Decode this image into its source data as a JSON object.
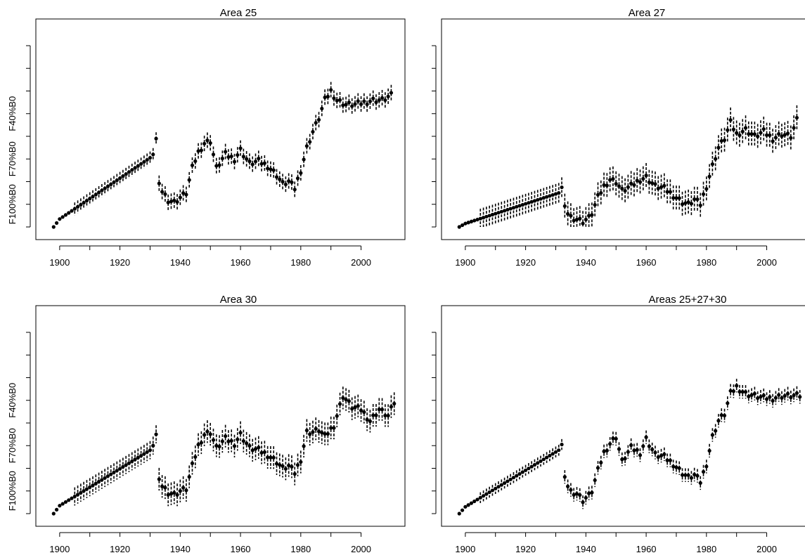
{
  "chart_data": [
    {
      "type": "scatter",
      "title": "Area 25",
      "xlim": [
        1897,
        2012
      ],
      "x_ticks": [
        1900,
        1920,
        1940,
        1960,
        1980,
        2000
      ],
      "y_tick_labels": [
        "F100%B0",
        "F70%B0",
        "F40%B0"
      ],
      "y_tick_positions": [
        1.0,
        3.0,
        5.0
      ],
      "note_y": "y in tick-units; ticks at 0..8, labeled ticks at 1 (F100%B0), 3 (F70%B0), 5 (F40%B0)",
      "series": [
        {
          "anchors_x": [
            1898,
            1900,
            1930,
            1931,
            1932,
            1933,
            1936,
            1938,
            1940,
            1942,
            1944,
            1946,
            1948,
            1950,
            1952,
            1955,
            1958,
            1960,
            1963,
            1966,
            1969,
            1972,
            1974,
            1976,
            1978,
            1980,
            1982,
            1984,
            1986,
            1988,
            1990,
            1992,
            1995,
            1998,
            2001,
            2004,
            2007,
            2010
          ],
          "anchors_y": [
            0.0,
            0.35,
            3.05,
            3.2,
            3.9,
            1.8,
            1.2,
            1.1,
            1.3,
            1.5,
            2.6,
            3.3,
            3.7,
            3.8,
            2.6,
            3.2,
            3.0,
            3.4,
            2.8,
            2.9,
            2.7,
            2.3,
            1.9,
            2.0,
            1.7,
            2.5,
            3.5,
            4.2,
            4.8,
            5.6,
            6.0,
            5.6,
            5.4,
            5.4,
            5.5,
            5.6,
            5.6,
            5.8
          ],
          "ci_half_width": 0.35
        }
      ]
    },
    {
      "type": "scatter",
      "title": "Area 27",
      "xlim": [
        1897,
        2012
      ],
      "x_ticks": [
        1900,
        1920,
        1940,
        1960,
        1980,
        2000
      ],
      "y_tick_labels": [],
      "y_tick_positions": [],
      "series": [
        {
          "anchors_x": [
            1898,
            1900,
            1931,
            1932,
            1933,
            1935,
            1937,
            1939,
            1941,
            1942,
            1944,
            1946,
            1948,
            1950,
            1952,
            1955,
            1958,
            1960,
            1963,
            1966,
            1969,
            1972,
            1974,
            1976,
            1978,
            1980,
            1982,
            1984,
            1986,
            1988,
            1990,
            1993,
            1996,
            1999,
            2002,
            2005,
            2008,
            2010
          ],
          "anchors_y": [
            0.0,
            0.15,
            1.5,
            1.75,
            0.8,
            0.45,
            0.35,
            0.25,
            0.4,
            0.6,
            1.3,
            1.8,
            2.1,
            2.0,
            1.6,
            1.8,
            2.1,
            2.2,
            1.8,
            1.7,
            1.4,
            1.1,
            1.0,
            1.2,
            1.0,
            1.8,
            2.7,
            3.5,
            3.9,
            4.6,
            4.1,
            4.3,
            4.0,
            4.2,
            3.9,
            4.1,
            4.0,
            4.7
          ],
          "ci_half_width": 0.55
        }
      ]
    },
    {
      "type": "scatter",
      "title": "Area 30",
      "xlim": [
        1897,
        2012
      ],
      "x_ticks": [
        1900,
        1920,
        1940,
        1960,
        1980,
        2000
      ],
      "y_tick_labels": [
        "F100%B0",
        "F70%B0",
        "F40%B0"
      ],
      "y_tick_positions": [
        1.0,
        3.0,
        5.0
      ],
      "series": [
        {
          "anchors_x": [
            1898,
            1900,
            1930,
            1931,
            1932,
            1933,
            1936,
            1938,
            1940,
            1942,
            1944,
            1946,
            1948,
            1950,
            1952,
            1955,
            1958,
            1960,
            1963,
            1966,
            1969,
            1972,
            1974,
            1976,
            1978,
            1980,
            1982,
            1984,
            1986,
            1988,
            1991,
            1994,
            1997,
            2000,
            2003,
            2006,
            2009,
            2011
          ],
          "anchors_y": [
            0.0,
            0.35,
            2.8,
            3.0,
            3.5,
            1.4,
            0.95,
            0.85,
            1.0,
            1.1,
            2.1,
            3.0,
            3.5,
            3.6,
            2.9,
            3.3,
            3.1,
            3.5,
            2.9,
            2.8,
            2.6,
            2.3,
            2.0,
            2.1,
            1.8,
            2.4,
            3.6,
            3.6,
            3.7,
            3.4,
            3.9,
            5.2,
            4.7,
            4.6,
            4.1,
            4.6,
            4.3,
            4.9
          ],
          "ci_half_width": 0.5
        }
      ]
    },
    {
      "type": "scatter",
      "title": "Areas 25+27+30",
      "xlim": [
        1897,
        2012
      ],
      "x_ticks": [
        1900,
        1920,
        1940,
        1960,
        1980,
        2000
      ],
      "y_tick_labels": [],
      "y_tick_positions": [],
      "series": [
        {
          "anchors_x": [
            1898,
            1900,
            1931,
            1932,
            1933,
            1935,
            1937,
            1939,
            1941,
            1942,
            1944,
            1946,
            1948,
            1950,
            1952,
            1955,
            1958,
            1960,
            1963,
            1966,
            1969,
            1972,
            1974,
            1976,
            1978,
            1980,
            1982,
            1984,
            1986,
            1988,
            1990,
            1993,
            1996,
            1999,
            2002,
            2005,
            2008,
            2011
          ],
          "anchors_y": [
            0.0,
            0.3,
            2.8,
            3.05,
            1.5,
            1.0,
            0.9,
            0.6,
            0.8,
            1.0,
            1.9,
            2.7,
            3.1,
            3.4,
            2.3,
            2.9,
            2.7,
            3.3,
            2.6,
            2.5,
            2.2,
            1.8,
            1.6,
            1.7,
            1.4,
            2.2,
            3.4,
            4.1,
            4.4,
            5.3,
            5.6,
            5.3,
            5.2,
            5.1,
            5.1,
            5.2,
            5.2,
            5.2
          ],
          "ci_half_width": 0.3
        }
      ]
    }
  ]
}
